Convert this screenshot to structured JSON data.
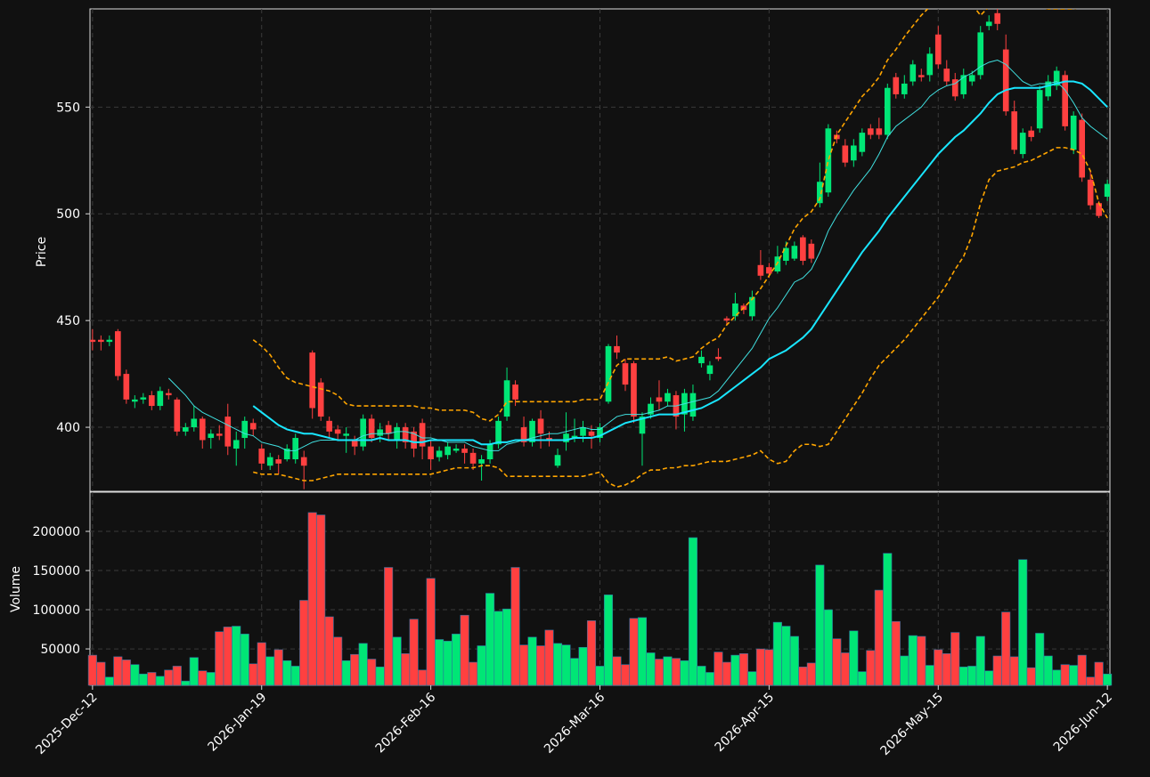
{
  "chart_data": [
    {
      "type": "candlestick",
      "ylabel": "Price",
      "xlim": [
        -0.3,
        120.3
      ],
      "ylim": [
        370,
        596
      ],
      "yticks": [
        400,
        450,
        500,
        550
      ],
      "grid": true,
      "up_color": "#00e676",
      "down_color": "#ff4040",
      "open": [
        441,
        441,
        440,
        445,
        425,
        412,
        413,
        415,
        410,
        416,
        413,
        398,
        400,
        404,
        395,
        397,
        405,
        390,
        395,
        402,
        390,
        382,
        385,
        385,
        385,
        386,
        435,
        421,
        403,
        399,
        396,
        394,
        391,
        404,
        396,
        401,
        394,
        400,
        398,
        402,
        391,
        386,
        387,
        389,
        390,
        388,
        383,
        385,
        392,
        405,
        420,
        400,
        393,
        404,
        395,
        382,
        393,
        395,
        396,
        398,
        395,
        412,
        438,
        430,
        430,
        397,
        406,
        414,
        412,
        415,
        406,
        405,
        430,
        425,
        433,
        451,
        452,
        457,
        452,
        476,
        475,
        473,
        478,
        479,
        489,
        486,
        505,
        510,
        537,
        532,
        525,
        529,
        540,
        540,
        537,
        564,
        556,
        562,
        565,
        565,
        584,
        568,
        563,
        556,
        562,
        565,
        588,
        594,
        577,
        548,
        528,
        539,
        540,
        555,
        560,
        565,
        530,
        544,
        516,
        505,
        508
      ],
      "high": [
        446,
        443,
        443,
        446,
        427,
        415,
        416,
        417,
        419,
        418,
        414,
        402,
        410,
        405,
        399,
        401,
        411,
        398,
        405,
        404,
        392,
        388,
        387,
        392,
        397,
        389,
        436,
        423,
        405,
        401,
        400,
        396,
        406,
        406,
        402,
        403,
        402,
        402,
        400,
        404,
        394,
        391,
        393,
        392,
        392,
        390,
        387,
        394,
        405,
        428,
        422,
        405,
        404,
        408,
        398,
        390,
        407,
        404,
        403,
        401,
        402,
        439,
        443,
        432,
        431,
        407,
        414,
        422,
        418,
        417,
        418,
        420,
        436,
        431,
        437,
        452,
        463,
        458,
        464,
        483,
        477,
        485,
        487,
        487,
        490,
        488,
        524,
        542,
        539,
        535,
        535,
        540,
        542,
        545,
        561,
        566,
        565,
        572,
        568,
        578,
        588,
        572,
        566,
        568,
        567,
        588,
        593,
        597,
        584,
        553,
        540,
        541,
        560,
        565,
        569,
        567,
        548,
        547,
        520,
        506,
        516
      ],
      "low": [
        436,
        436,
        438,
        422,
        411,
        409,
        411,
        408,
        408,
        413,
        396,
        396,
        398,
        390,
        390,
        394,
        387,
        382,
        390,
        396,
        380,
        380,
        378,
        384,
        383,
        371,
        404,
        403,
        395,
        394,
        388,
        387,
        389,
        393,
        393,
        394,
        390,
        390,
        386,
        385,
        380,
        384,
        385,
        388,
        383,
        380,
        375,
        383,
        390,
        403,
        410,
        391,
        391,
        390,
        391,
        381,
        389,
        393,
        393,
        390,
        393,
        411,
        432,
        417,
        402,
        382,
        404,
        408,
        410,
        399,
        398,
        403,
        428,
        422,
        431,
        448,
        450,
        453,
        450,
        469,
        470,
        472,
        476,
        478,
        476,
        477,
        503,
        508,
        533,
        522,
        522,
        527,
        535,
        535,
        535,
        554,
        554,
        560,
        562,
        562,
        568,
        560,
        553,
        554,
        560,
        563,
        586,
        586,
        546,
        528,
        526,
        534,
        538,
        553,
        558,
        539,
        528,
        515,
        502,
        498,
        506
      ],
      "close": [
        440,
        440,
        441,
        424,
        413,
        413,
        414,
        410,
        417,
        415,
        398,
        400,
        404,
        394,
        397,
        396,
        391,
        394,
        403,
        399,
        383,
        386,
        383,
        390,
        395,
        382,
        409,
        405,
        398,
        397,
        397,
        391,
        404,
        395,
        399,
        397,
        400,
        393,
        390,
        391,
        385,
        389,
        391,
        390,
        388,
        383,
        385,
        392,
        403,
        422,
        413,
        393,
        403,
        397,
        394,
        387,
        397,
        396,
        400,
        396,
        400,
        438,
        435,
        420,
        405,
        405,
        411,
        412,
        416,
        405,
        416,
        416,
        433,
        429,
        432,
        450,
        458,
        455,
        461,
        471,
        472,
        480,
        484,
        485,
        478,
        479,
        515,
        540,
        535,
        524,
        532,
        538,
        537,
        537,
        559,
        556,
        561,
        570,
        564,
        575,
        570,
        562,
        555,
        565,
        565,
        585,
        590,
        589,
        548,
        530,
        538,
        536,
        558,
        562,
        567,
        541,
        546,
        517,
        504,
        499,
        514
      ],
      "lines": [
        {
          "color": "#40e0e0",
          "width": 1,
          "dash": false,
          "values": [
            null,
            null,
            null,
            null,
            null,
            null,
            null,
            null,
            null,
            423,
            419,
            415,
            410,
            407,
            405,
            403,
            401,
            399,
            397,
            396,
            393,
            392,
            391,
            389,
            389,
            391,
            393,
            394,
            394,
            394,
            394,
            394,
            396,
            397,
            397,
            397,
            398,
            398,
            397,
            395,
            395,
            394,
            393,
            393,
            393,
            391,
            390,
            389,
            389,
            392,
            393,
            394,
            395,
            396,
            397,
            397,
            398,
            399,
            400,
            399,
            399,
            402,
            405,
            406,
            406,
            406,
            407,
            408,
            410,
            410,
            411,
            412,
            413,
            414,
            417,
            422,
            427,
            432,
            437,
            444,
            451,
            456,
            462,
            468,
            470,
            474,
            482,
            492,
            499,
            505,
            511,
            516,
            521,
            528,
            536,
            541,
            544,
            547,
            550,
            555,
            558,
            560,
            561,
            564,
            566,
            569,
            571,
            572,
            570,
            566,
            562,
            560,
            561,
            561,
            562,
            558,
            552,
            545,
            541,
            538,
            535
          ]
        },
        {
          "color": "#19e6ff",
          "width": 2,
          "dash": false,
          "values": [
            null,
            null,
            null,
            null,
            null,
            null,
            null,
            null,
            null,
            null,
            null,
            null,
            null,
            null,
            null,
            null,
            null,
            null,
            null,
            410,
            407,
            404,
            401,
            399,
            398,
            397,
            397,
            396,
            395,
            394,
            394,
            394,
            394,
            394,
            395,
            394,
            394,
            394,
            393,
            393,
            394,
            394,
            394,
            394,
            394,
            394,
            392,
            392,
            393,
            393,
            394,
            394,
            394,
            394,
            394,
            394,
            394,
            395,
            395,
            395,
            396,
            398,
            400,
            402,
            403,
            404,
            405,
            406,
            406,
            406,
            407,
            408,
            409,
            411,
            413,
            416,
            419,
            422,
            425,
            428,
            432,
            434,
            436,
            439,
            442,
            446,
            452,
            458,
            464,
            470,
            476,
            482,
            487,
            492,
            498,
            503,
            508,
            513,
            518,
            523,
            528,
            532,
            536,
            539,
            543,
            547,
            552,
            556,
            558,
            559,
            559,
            559,
            559,
            560,
            561,
            562,
            562,
            561,
            558,
            554,
            550
          ]
        },
        {
          "color": "#ffa500",
          "width": 1.6,
          "dash": true,
          "values": [
            null,
            null,
            null,
            null,
            null,
            null,
            null,
            null,
            null,
            null,
            null,
            null,
            null,
            null,
            null,
            null,
            null,
            null,
            null,
            441,
            438,
            434,
            428,
            423,
            421,
            420,
            419,
            418,
            417,
            415,
            411,
            410,
            410,
            410,
            410,
            410,
            410,
            410,
            410,
            409,
            409,
            408,
            408,
            408,
            408,
            407,
            404,
            403,
            406,
            412,
            412,
            412,
            412,
            412,
            412,
            412,
            412,
            412,
            413,
            413,
            413,
            421,
            429,
            432,
            432,
            432,
            432,
            432,
            433,
            431,
            432,
            433,
            437,
            440,
            442,
            448,
            452,
            456,
            460,
            465,
            471,
            477,
            485,
            493,
            498,
            501,
            507,
            525,
            537,
            543,
            549,
            555,
            559,
            564,
            572,
            577,
            583,
            588,
            593,
            597,
            598,
            598,
            598,
            598,
            598,
            593,
            597,
            600,
            599,
            598,
            597,
            597,
            597,
            596,
            596,
            596,
            596,
            597,
            598,
            599,
            600
          ]
        },
        {
          "color": "#ffa500",
          "width": 1.6,
          "dash": true,
          "values": [
            null,
            null,
            null,
            null,
            null,
            null,
            null,
            null,
            null,
            null,
            null,
            null,
            null,
            null,
            null,
            null,
            null,
            null,
            null,
            379,
            378,
            378,
            378,
            377,
            376,
            375,
            375,
            376,
            377,
            378,
            378,
            378,
            378,
            378,
            378,
            378,
            378,
            378,
            378,
            378,
            378,
            379,
            380,
            381,
            381,
            381,
            382,
            382,
            381,
            377,
            377,
            377,
            377,
            377,
            377,
            377,
            377,
            377,
            377,
            378,
            379,
            374,
            372,
            373,
            375,
            378,
            380,
            380,
            381,
            381,
            382,
            382,
            383,
            384,
            384,
            384,
            385,
            386,
            387,
            389,
            385,
            383,
            384,
            389,
            392,
            392,
            391,
            392,
            398,
            404,
            410,
            416,
            423,
            429,
            433,
            437,
            441,
            446,
            451,
            456,
            461,
            467,
            474,
            480,
            490,
            505,
            516,
            520,
            521,
            522,
            524,
            525,
            527,
            529,
            531,
            531,
            530,
            528,
            520,
            505,
            498
          ]
        }
      ]
    },
    {
      "type": "bar",
      "ylabel": "Volume",
      "xlim": [
        -0.3,
        120.3
      ],
      "ylim": [
        3500,
        250000
      ],
      "yticks": [
        50000,
        100000,
        150000,
        200000
      ],
      "grid": true,
      "xticks": [
        {
          "value": 0,
          "label": "2025-Dec-12"
        },
        {
          "value": 20,
          "label": "2026-Jan-19"
        },
        {
          "value": 40,
          "label": "2026-Feb-16"
        },
        {
          "value": 60,
          "label": "2026-Mar-16"
        },
        {
          "value": 80,
          "label": "2026-Apr-15"
        },
        {
          "value": 100,
          "label": "2026-May-15"
        },
        {
          "value": 120,
          "label": "2026-Jun-12"
        }
      ],
      "values": [
        42000,
        33000,
        14000,
        40000,
        36000,
        30000,
        18000,
        20000,
        15000,
        23000,
        28000,
        9000,
        39000,
        22000,
        20000,
        72000,
        78000,
        79000,
        69000,
        31000,
        58000,
        40000,
        49000,
        35000,
        28000,
        112000,
        224000,
        221000,
        91000,
        65000,
        35000,
        43000,
        57000,
        37000,
        27000,
        154000,
        65000,
        44000,
        88000,
        23000,
        140000,
        62000,
        60000,
        69000,
        93000,
        33000,
        54000,
        121000,
        98000,
        101000,
        154000,
        55000,
        65000,
        54000,
        74000,
        57000,
        55000,
        38000,
        52000,
        86000,
        28000,
        119000,
        40000,
        30000,
        89000,
        90000,
        45000,
        37000,
        40000,
        38000,
        35000,
        192000,
        28000,
        20000,
        46000,
        33000,
        42000,
        44000,
        21000,
        50000,
        49000,
        84000,
        79000,
        66000,
        27000,
        32000,
        157000,
        100000,
        63000,
        45000,
        73000,
        21000,
        48000,
        125000,
        172000,
        85000,
        41000,
        67000,
        66000,
        29000,
        49000,
        44000,
        71000,
        27000,
        28000,
        66000,
        22000,
        41000,
        97000,
        40000,
        164000,
        26000,
        70000,
        41000,
        23000,
        30000,
        29000,
        42000,
        14000,
        33000,
        18000
      ]
    }
  ]
}
